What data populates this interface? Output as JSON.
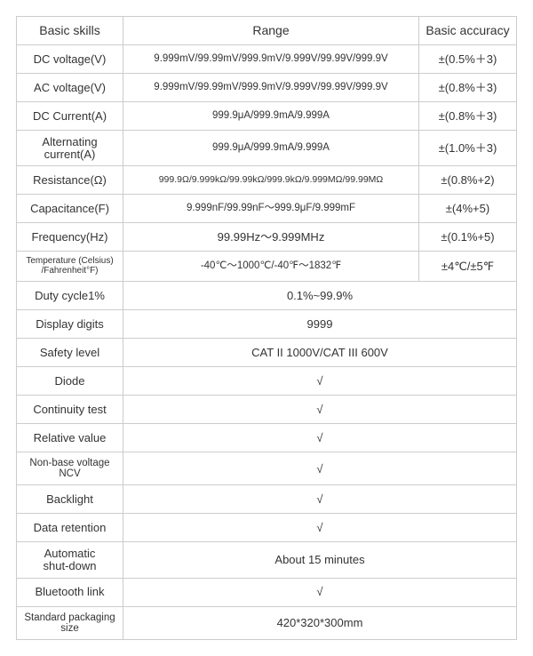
{
  "table": {
    "headers": {
      "skill": "Basic skills",
      "range": "Range",
      "accuracy": "Basic accuracy"
    },
    "rows3": [
      {
        "skill": "DC voltage(V)",
        "range": "9.999mV/99.99mV/999.9mV/9.999V/99.99V/999.9V",
        "accuracy": "±(0.5%＋3)",
        "skillClass": "",
        "rangeClass": "range-med"
      },
      {
        "skill": "AC voltage(V)",
        "range": "9.999mV/99.99mV/999.9mV/9.999V/99.99V/999.9V",
        "accuracy": "±(0.8%＋3)",
        "skillClass": "",
        "rangeClass": "range-med"
      },
      {
        "skill": "DC Current(A)",
        "range": "999.9μA/999.9mA/9.999A",
        "accuracy": "±(0.8%＋3)",
        "skillClass": "",
        "rangeClass": "range-med"
      },
      {
        "skill": "Alternating\ncurrent(A)",
        "range": "999.9μA/999.9mA/9.999A",
        "accuracy": "±(1.0%＋3)",
        "skillClass": "twoline",
        "rangeClass": "range-med"
      },
      {
        "skill": "Resistance(Ω)",
        "range": "999.9Ω/9.999kΩ/99.99kΩ/999.9kΩ/9.999MΩ/99.99MΩ",
        "accuracy": "±(0.8%+2)",
        "skillClass": "",
        "rangeClass": "range-small"
      },
      {
        "skill": "Capacitance(F)",
        "range": "9.999nF/99.99nF～999.9μF/9.999mF",
        "accuracy": "±(4%+5)",
        "skillClass": "",
        "rangeClass": "range-med"
      },
      {
        "skill": "Frequency(Hz)",
        "range": "99.99Hz～9.999MHz",
        "accuracy": "±(0.1%+5)",
        "skillClass": "",
        "rangeClass": ""
      },
      {
        "skill": "Temperature (Celsius)\n/Fahrenheit°F)",
        "range": "-40℃～1000℃/-40℉～1832℉",
        "accuracy": "±4℃/±5℉",
        "skillClass": "small",
        "rangeClass": "range-med"
      }
    ],
    "rows2": [
      {
        "skill": "Duty cycle1%",
        "value": "0.1%~99.9%",
        "skillClass": ""
      },
      {
        "skill": "Display digits",
        "value": "9999",
        "skillClass": ""
      },
      {
        "skill": "Safety level",
        "value": "CAT II 1000V/CAT III 600V",
        "skillClass": ""
      },
      {
        "skill": "Diode",
        "value": "√",
        "skillClass": ""
      },
      {
        "skill": "Continuity test",
        "value": "√",
        "skillClass": ""
      },
      {
        "skill": "Relative value",
        "value": "√",
        "skillClass": ""
      },
      {
        "skill": "Non-base voltage\nNCV",
        "value": "√",
        "skillClass": "smallish twoline"
      },
      {
        "skill": "Backlight",
        "value": "√",
        "skillClass": ""
      },
      {
        "skill": "Data retention",
        "value": "√",
        "skillClass": ""
      },
      {
        "skill": "Automatic\nshut-down",
        "value": "About 15 minutes",
        "skillClass": "twoline"
      },
      {
        "skill": "Bluetooth link",
        "value": "√",
        "skillClass": ""
      },
      {
        "skill": "Standard packaging\nsize",
        "value": "420*320*300mm",
        "skillClass": "smallish twoline"
      }
    ]
  },
  "style": {
    "border_color": "#cccccc",
    "text_color": "#333333",
    "background": "#ffffff"
  }
}
